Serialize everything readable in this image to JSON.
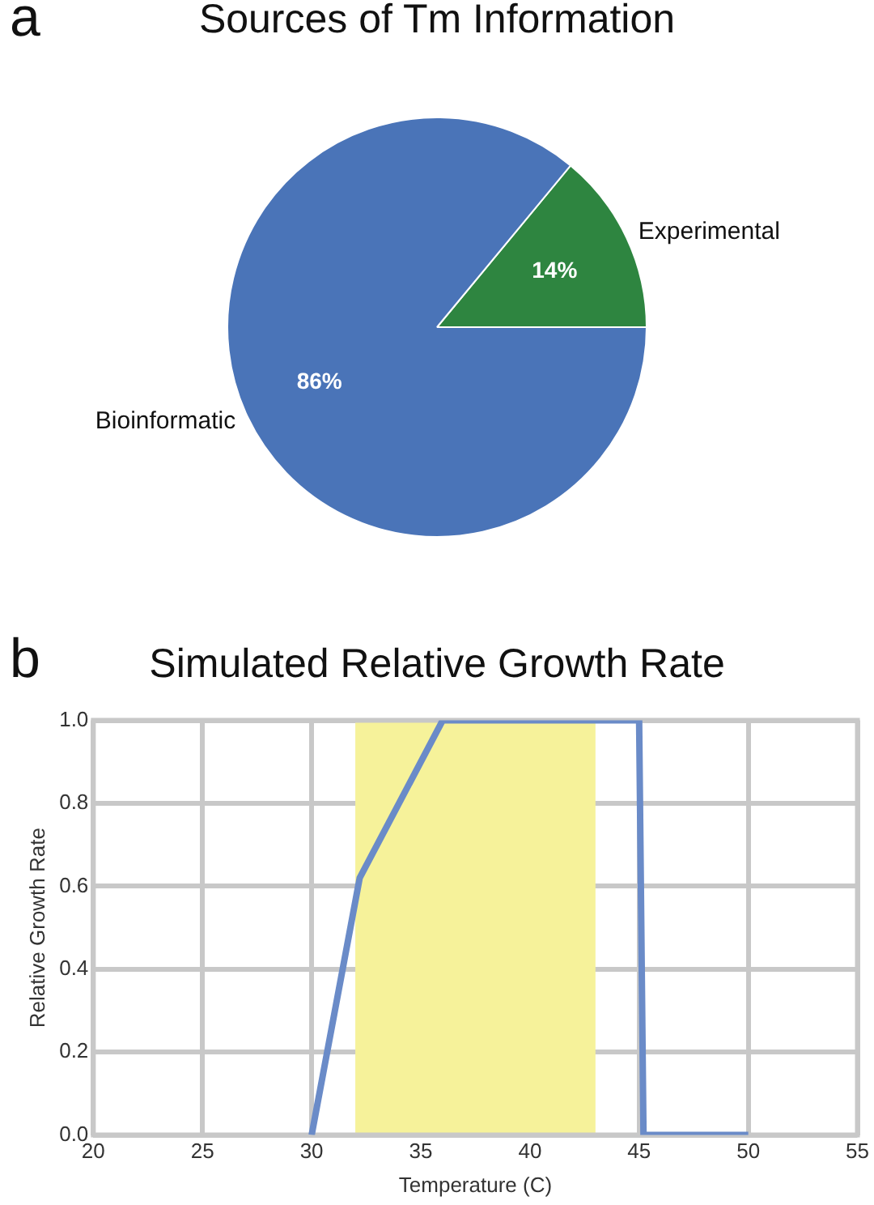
{
  "chart_data": [
    {
      "type": "pie",
      "title": "Sources of Tm Information",
      "annotations": [
        "a"
      ],
      "categories": [
        "Experimental",
        "Bioinformatic"
      ],
      "values": [
        14,
        86
      ],
      "colors": [
        "#2e8540",
        "#4a74b8"
      ],
      "value_labels": [
        "14%",
        "86%"
      ],
      "legend": false
    },
    {
      "type": "line",
      "title": "Simulated Relative Growth Rate",
      "annotations": [
        "b"
      ],
      "xlabel": "Temperature (C)",
      "ylabel": "Relative Growth Rate",
      "series": [
        {
          "color": "#6a8bc8",
          "x": [
            30,
            32.2,
            36,
            45,
            45.2,
            50
          ],
          "values": [
            0,
            0.62,
            1,
            1,
            0,
            0
          ]
        }
      ],
      "xlim": [
        20,
        55
      ],
      "xticks": [
        20,
        25,
        30,
        35,
        40,
        45,
        50,
        55
      ],
      "ylim": [
        0,
        1
      ],
      "yticks": [
        {
          "value": 0,
          "label": "0.0"
        },
        {
          "value": 0.2,
          "label": "0.2"
        },
        {
          "value": 0.4,
          "label": "0.4"
        },
        {
          "value": 0.6,
          "label": "0.6"
        },
        {
          "value": 0.8,
          "label": "0.8"
        },
        {
          "value": 1,
          "label": "1.0"
        }
      ],
      "bands": [
        {
          "axis": "x",
          "from": 32,
          "to": 43,
          "color": "#f6f29a"
        }
      ],
      "grid": true,
      "legend": false,
      "marker": "none",
      "line_style": "solid"
    }
  ]
}
